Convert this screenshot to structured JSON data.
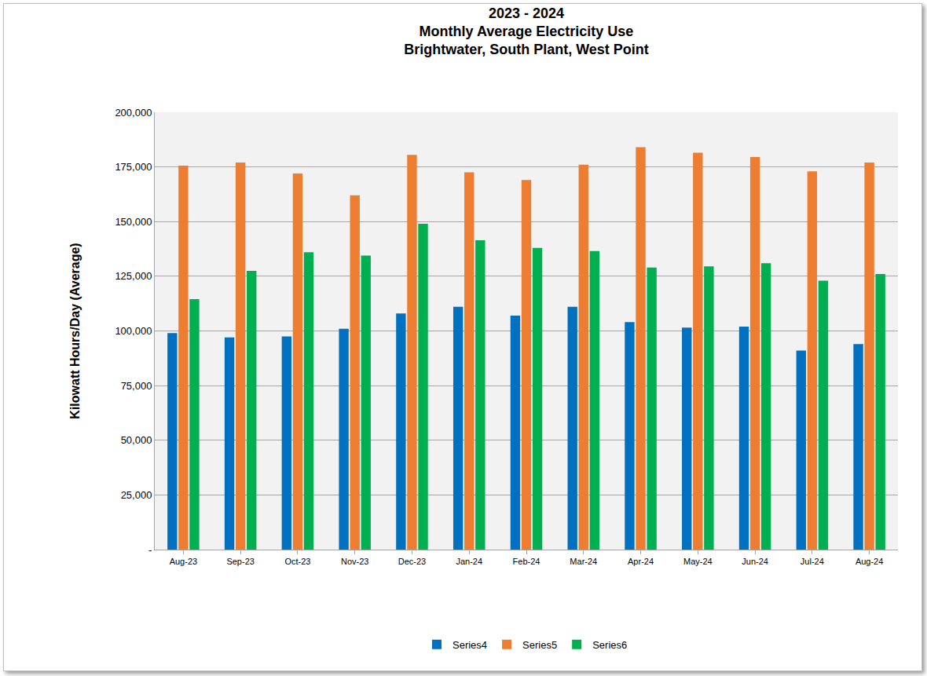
{
  "chart_data": {
    "type": "bar",
    "title": "2023 - 2024\nMonthly Average Electricity Use\nBrightwater, South Plant, West Point",
    "y_label": "Kilowatt Hours/Day (Average)",
    "categories": [
      "Aug-23",
      "Sep-23",
      "Oct-23",
      "Nov-23",
      "Dec-23",
      "Jan-24",
      "Feb-24",
      "Mar-24",
      "Apr-24",
      "May-24",
      "Jun-24",
      "Jul-24",
      "Aug-24"
    ],
    "series": [
      {
        "name": "Series4",
        "color": "#0070c0",
        "values": [
          99000,
          97000,
          97500,
          101000,
          108000,
          111000,
          107000,
          111000,
          104000,
          101500,
          102000,
          91000,
          94000
        ]
      },
      {
        "name": "Series5",
        "color": "#ed7d31",
        "values": [
          175600,
          177000,
          172000,
          162000,
          180500,
          172500,
          169000,
          176000,
          184000,
          181500,
          179500,
          173000,
          177000
        ]
      },
      {
        "name": "Series6",
        "color": "#00b050",
        "values": [
          114500,
          127500,
          136000,
          134500,
          149000,
          141500,
          138000,
          136500,
          129000,
          129500,
          131000,
          123000,
          126000
        ]
      }
    ],
    "ylim": [
      0,
      200000
    ],
    "yticks": [
      {
        "value": 0,
        "label": "-"
      },
      {
        "value": 25000,
        "label": "25,000"
      },
      {
        "value": 50000,
        "label": "50,000"
      },
      {
        "value": 75000,
        "label": "75,000"
      },
      {
        "value": 100000,
        "label": "100,000"
      },
      {
        "value": 125000,
        "label": "125,000"
      },
      {
        "value": 150000,
        "label": "150,000"
      },
      {
        "value": 175000,
        "label": "175,000"
      },
      {
        "value": 200000,
        "label": "200,000"
      }
    ],
    "grid": true,
    "legend": "bottom"
  }
}
